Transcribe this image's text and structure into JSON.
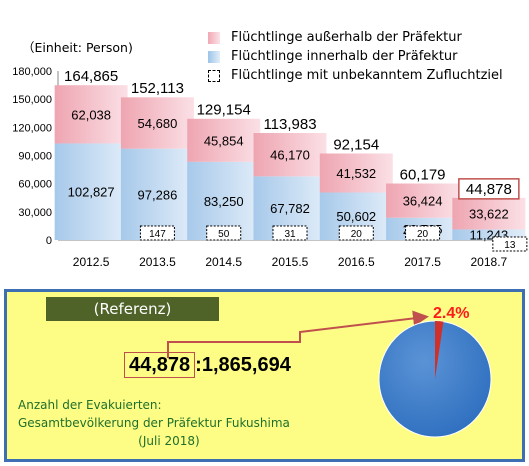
{
  "chart": {
    "unit_label": "（Einheit: Person)",
    "legend": [
      {
        "key": "outside",
        "label": "Flüchtlinge  außerhalb  der Präfektur",
        "color": "#f1a8b4"
      },
      {
        "key": "inside",
        "label": "Flüchtlinge  innerhalb  der Präfektur",
        "color": "#9cc4e8"
      },
      {
        "key": "unknown",
        "label": "Flüchtlinge  mit  unbekanntem  Zufluchtziel",
        "color": "#ffffff"
      }
    ]
  },
  "chart_data": {
    "type": "bar",
    "stacked": true,
    "categories": [
      "2012.5",
      "2013.5",
      "2014.5",
      "2015.5",
      "2016.5",
      "2017.5",
      "2018.7"
    ],
    "series": [
      {
        "name": "Flüchtlinge innerhalb der Präfektur",
        "values": [
          102827,
          97286,
          83250,
          67782,
          50602,
          23735,
          11243
        ],
        "color": "#9cc4e8"
      },
      {
        "name": "Flüchtlinge außerhalb der Präfektur",
        "values": [
          62038,
          54680,
          45854,
          46170,
          41532,
          36424,
          33622
        ],
        "color": "#f1a8b4"
      },
      {
        "name": "Flüchtlinge mit unbekanntem Zufluchtziel",
        "values": [
          null,
          147,
          50,
          31,
          20,
          20,
          13
        ]
      }
    ],
    "totals": [
      164865,
      152113,
      129154,
      113983,
      92154,
      60179,
      44878
    ],
    "y_ticks": [
      0,
      30000,
      60000,
      90000,
      120000,
      150000,
      180000
    ],
    "ylim": [
      0,
      180000
    ],
    "highlight_last_total": true,
    "grid": false
  },
  "reference": {
    "label": "(Referenz)",
    "evacuees": "44,878",
    "separator": ":",
    "population": "1,865,694",
    "percent": "2.4%",
    "desc_line1": "Anzahl der Evakuierten:",
    "desc_line2": "Gesamtbevölkerung  der Präfektur  Fukushima",
    "desc_line3": "(Juli 2018)",
    "pie": {
      "share_percent": 2.4,
      "main_color": "#2e6fbf",
      "share_color": "#d0302a"
    }
  }
}
